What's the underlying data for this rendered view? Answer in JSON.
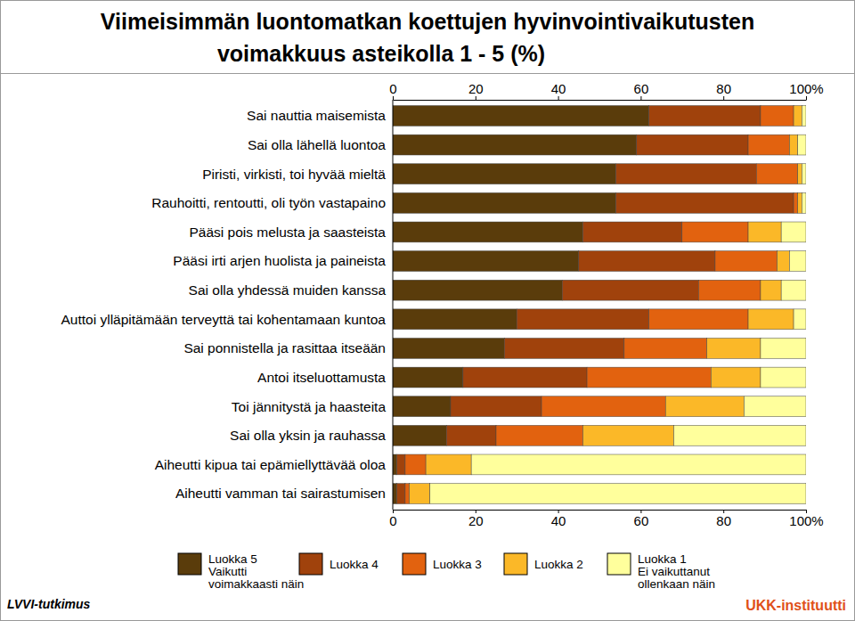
{
  "chart_data": {
    "type": "bar",
    "orientation": "horizontal",
    "stacked": true,
    "grid": false,
    "legend": "bottom",
    "title": "Viimeisimmän luontomatkan koettujen hyvinvointivaikutusten\nvoimakkuus asteikolla 1 - 5 (%)",
    "annotations": [
      "LVVI-tutkimus",
      "UKK-instituutti"
    ],
    "categories": [
      "Sai nauttia maisemista",
      "Sai olla lähellä luontoa",
      "Piristi, virkisti, toi hyvää mieltä",
      "Rauhoitti, rentoutti, oli työn vastapaino",
      "Pääsi pois melusta ja saasteista",
      "Pääsi irti arjen huolista ja paineista",
      "Sai olla yhdessä muiden kanssa",
      "Auttoi ylläpitämään terveyttä tai kohentamaan kuntoa",
      "Sai ponnistella ja rasittaa itseään",
      "Antoi itseluottamusta",
      "Toi jännitystä ja haasteita",
      "Sai olla yksin ja rauhassa",
      "Aiheutti kipua tai epämiellyttävää oloa",
      "Aiheutti vamman tai sairastumisen"
    ],
    "series": [
      {
        "name": "Luokka 5\nVaikutti\nvoimakkaasti näin",
        "color": "#5a3c0b",
        "values": [
          62,
          59,
          54,
          54,
          46,
          45,
          41,
          30,
          27,
          17,
          14,
          13,
          1,
          1
        ]
      },
      {
        "name": "Luokka 4",
        "color": "#a0420c",
        "values": [
          27,
          27,
          34,
          43,
          24,
          33,
          33,
          32,
          29,
          30,
          22,
          12,
          2,
          2
        ]
      },
      {
        "name": "Luokka 3",
        "color": "#e2620f",
        "values": [
          8,
          10,
          10,
          1,
          16,
          15,
          15,
          24,
          20,
          30,
          30,
          21,
          5,
          1
        ]
      },
      {
        "name": "Luokka 2",
        "color": "#fbb828",
        "values": [
          2,
          2,
          1,
          1,
          8,
          3,
          5,
          11,
          13,
          12,
          19,
          22,
          11,
          5
        ]
      },
      {
        "name": "Luokka 1\nEi vaikuttanut\nollenkaan näin",
        "color": "#ffff9c",
        "values": [
          1,
          2,
          1,
          1,
          6,
          4,
          6,
          3,
          11,
          11,
          15,
          32,
          81,
          91
        ]
      }
    ],
    "xlim": [
      0,
      100
    ],
    "xticks": [
      0,
      20,
      40,
      60,
      80,
      {
        "value": 100,
        "label": "100%"
      }
    ]
  }
}
